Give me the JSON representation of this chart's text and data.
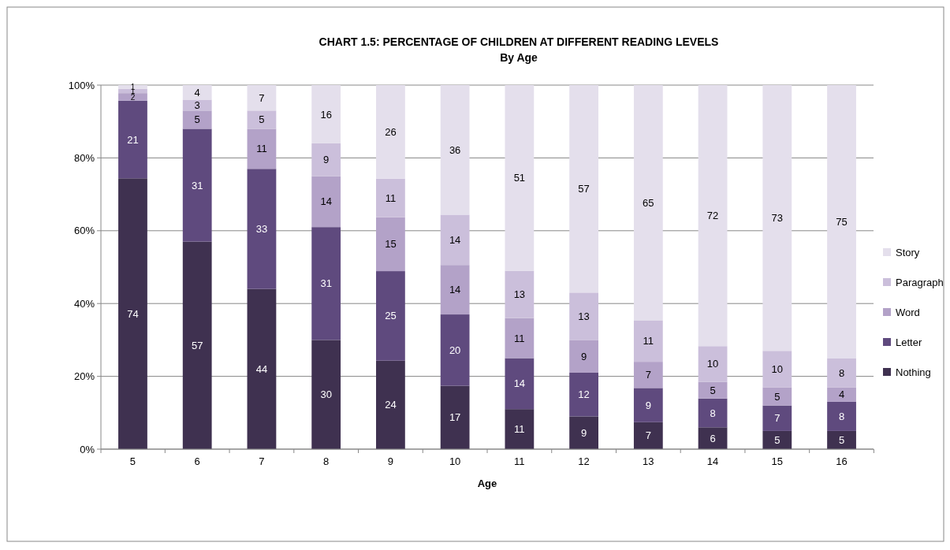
{
  "chart_data": {
    "type": "bar",
    "stacked": true,
    "title": "CHART 1.5: PERCENTAGE OF CHILDREN AT DIFFERENT READING LEVELS",
    "subtitle": "By Age",
    "xlabel": "Age",
    "categories": [
      "5",
      "6",
      "7",
      "8",
      "9",
      "10",
      "11",
      "12",
      "13",
      "14",
      "15",
      "16"
    ],
    "series": [
      {
        "name": "Nothing",
        "color": "#3f3150",
        "values": [
          74.4,
          57,
          44,
          30,
          24.3,
          17.4,
          11,
          9,
          7.4,
          6,
          5,
          5
        ],
        "value_labels": [
          "74",
          "57",
          "44",
          "30",
          "24",
          "17",
          "11",
          "9",
          "7",
          "6",
          "5",
          "5"
        ]
      },
      {
        "name": "Letter",
        "color": "#5f4a7e",
        "values": [
          21.3,
          31,
          33,
          31,
          24.6,
          19.6,
          14,
          12,
          9.4,
          7.9,
          7,
          8
        ],
        "value_labels": [
          "21",
          "31",
          "33",
          "31",
          "25",
          "20",
          "14",
          "12",
          "9",
          "8",
          "7",
          "8"
        ]
      },
      {
        "name": "Word",
        "color": "#b3a2c8",
        "values": [
          2.1,
          5,
          11,
          14,
          14.8,
          13.6,
          11,
          9,
          7.2,
          4.6,
          5,
          4
        ],
        "value_labels": [
          "2",
          "5",
          "11",
          "14",
          "15",
          "14",
          "11",
          "9",
          "7",
          "5",
          "5",
          "4"
        ]
      },
      {
        "name": "Paragraph",
        "color": "#cbbfdb",
        "values": [
          1.2,
          3,
          5,
          9,
          10.6,
          13.8,
          13,
          13,
          11.4,
          9.8,
          10,
          8
        ],
        "value_labels": [
          "1",
          "3",
          "5",
          "9",
          "11",
          "14",
          "13",
          "13",
          "11",
          "10",
          "10",
          "8"
        ]
      },
      {
        "name": "Story",
        "color": "#e4dfec",
        "values": [
          1.0,
          4,
          7,
          16,
          25.7,
          35.6,
          51,
          57,
          64.6,
          71.7,
          73,
          75
        ],
        "value_labels": [
          "1",
          "4",
          "7",
          "16",
          "26",
          "36",
          "51",
          "57",
          "65",
          "72",
          "73",
          "75"
        ]
      }
    ],
    "ylim": [
      0,
      100
    ],
    "yticks": [
      {
        "value": 0,
        "label": "0%"
      },
      {
        "value": 20,
        "label": "20%"
      },
      {
        "value": 40,
        "label": "40%"
      },
      {
        "value": 60,
        "label": "60%"
      },
      {
        "value": 80,
        "label": "80%"
      },
      {
        "value": 100,
        "label": "100%"
      }
    ],
    "grid": "y",
    "legend": "right"
  }
}
